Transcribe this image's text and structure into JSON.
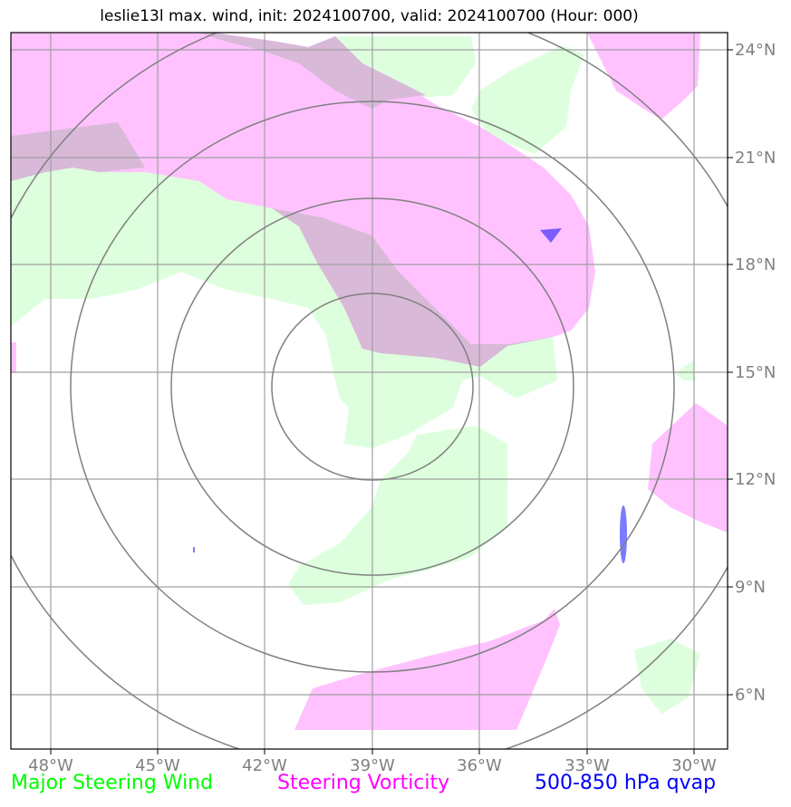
{
  "title": "leslie13l max. wind, init: 2024100700, valid: 2024100700 (Hour: 000)",
  "map": {
    "lon_labels": [
      "48°W",
      "45°W",
      "42°W",
      "39°W",
      "36°W",
      "33°W",
      "30°W"
    ],
    "lat_labels": [
      "24°N",
      "21°N",
      "18°N",
      "15°N",
      "12°N",
      "9°N",
      "6°N"
    ],
    "range_rings": 4
  },
  "legend": {
    "wind": {
      "label": "Major Steering Wind",
      "color": "#00ff00"
    },
    "vorticity": {
      "label": "Steering Vorticity",
      "color": "#ff00ff"
    },
    "qvap": {
      "label": "500-850 hPa qvap",
      "color": "#0000ff"
    }
  },
  "colors": {
    "wind_fill": "#ddffdd",
    "vorticity_fill": "#ffc2ff",
    "overlap_fill": "#d8b9d8",
    "qvap_fill": "#7b5cff",
    "grid": "#a0a0a0",
    "rings": "#808080"
  }
}
